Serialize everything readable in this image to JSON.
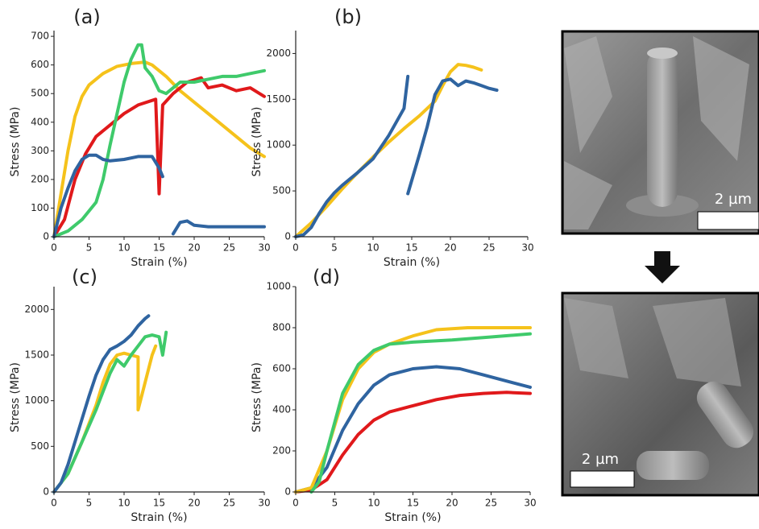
{
  "chart_data": [
    {
      "type": "line",
      "title": "(a)",
      "x_label": "Strain (%)",
      "y_label": "Stress (MPa)",
      "xlim": [
        0,
        30
      ],
      "ylim": [
        0,
        720
      ],
      "xticks": [
        0,
        5,
        10,
        15,
        20,
        25,
        30
      ],
      "yticks": [
        0,
        100,
        200,
        300,
        400,
        500,
        600,
        700
      ],
      "series": [
        {
          "color": "#f5c21b",
          "x": [
            0,
            1,
            2,
            3,
            4,
            5,
            7,
            9,
            11,
            13,
            14,
            16,
            18,
            20,
            22,
            24,
            26,
            28,
            30
          ],
          "values": [
            0,
            150,
            300,
            420,
            490,
            530,
            570,
            595,
            605,
            610,
            600,
            560,
            510,
            470,
            430,
            390,
            350,
            310,
            280
          ]
        },
        {
          "color": "#e0191b",
          "x": [
            0,
            1.5,
            3,
            4.5,
            6,
            8,
            10,
            12,
            14.5,
            15,
            15.5,
            17,
            19,
            21,
            22,
            24,
            26,
            28,
            30
          ],
          "values": [
            0,
            60,
            200,
            290,
            350,
            390,
            430,
            460,
            480,
            150,
            460,
            500,
            540,
            555,
            520,
            530,
            510,
            520,
            490
          ]
        },
        {
          "color": "#3fca6b",
          "x": [
            0,
            2,
            4,
            6,
            7,
            8,
            9,
            10,
            11,
            12,
            12.5,
            13,
            14,
            15,
            16,
            17,
            18,
            20,
            22,
            24,
            26,
            28,
            30
          ],
          "values": [
            0,
            20,
            60,
            120,
            200,
            320,
            430,
            540,
            620,
            670,
            670,
            590,
            560,
            510,
            500,
            520,
            540,
            540,
            550,
            560,
            560,
            570,
            580
          ]
        },
        {
          "color": "#2f64a0",
          "x": [
            0,
            1,
            2,
            3,
            4,
            5,
            6,
            7,
            8,
            10,
            12,
            14,
            15,
            15.5,
            16,
            17,
            18,
            19,
            20,
            22,
            25,
            30
          ],
          "values": [
            0,
            100,
            170,
            230,
            270,
            285,
            285,
            270,
            265,
            270,
            280,
            280,
            240,
            210,
            null,
            10,
            50,
            55,
            40,
            35,
            35,
            35
          ]
        }
      ]
    },
    {
      "type": "line",
      "title": "(b)",
      "x_label": "Strain (%)",
      "y_label": "Stress (MPa)",
      "xlim": [
        0,
        30
      ],
      "ylim": [
        0,
        2250
      ],
      "xticks": [
        0,
        5,
        10,
        15,
        20,
        25,
        30
      ],
      "yticks": [
        0,
        500,
        1000,
        1500,
        2000
      ],
      "series": [
        {
          "color": "#f5c21b",
          "x": [
            0,
            2,
            4,
            6,
            8,
            10,
            12,
            14,
            16,
            18,
            19,
            20,
            21,
            22,
            23,
            24
          ],
          "values": [
            0,
            150,
            330,
            520,
            700,
            870,
            1030,
            1180,
            1320,
            1480,
            1650,
            1800,
            1880,
            1870,
            1850,
            1820
          ]
        },
        {
          "color": "#2f64a0",
          "x": [
            0,
            1,
            2,
            3,
            4,
            5,
            6,
            8,
            10,
            12,
            14,
            14.5,
            14.5,
            14.5,
            16,
            17,
            18,
            19,
            20,
            21,
            22,
            23,
            24,
            25,
            26
          ],
          "values": [
            0,
            20,
            100,
            250,
            380,
            480,
            560,
            700,
            850,
            1100,
            1400,
            1750,
            null,
            470,
            900,
            1200,
            1550,
            1700,
            1720,
            1650,
            1700,
            1680,
            1650,
            1620,
            1600
          ]
        }
      ]
    },
    {
      "type": "line",
      "title": "(c)",
      "x_label": "Strain (%)",
      "y_label": "Stress (MPa)",
      "xlim": [
        0,
        30
      ],
      "ylim": [
        0,
        2250
      ],
      "xticks": [
        0,
        5,
        10,
        15,
        20,
        25,
        30
      ],
      "yticks": [
        0,
        500,
        1000,
        1500,
        2000
      ],
      "series": [
        {
          "color": "#f5c21b",
          "x": [
            0,
            2,
            4,
            6,
            7,
            8,
            9,
            10,
            11,
            12,
            12,
            13,
            14,
            14.5
          ],
          "values": [
            0,
            200,
            550,
            950,
            1200,
            1400,
            1500,
            1520,
            1500,
            1480,
            900,
            1200,
            1500,
            1600
          ]
        },
        {
          "color": "#3fca6b",
          "x": [
            0,
            2,
            4,
            6,
            8,
            9,
            10,
            11,
            12,
            13,
            14,
            15,
            15.5,
            16
          ],
          "values": [
            0,
            200,
            550,
            900,
            1300,
            1450,
            1380,
            1500,
            1600,
            1700,
            1720,
            1700,
            1500,
            1750
          ]
        },
        {
          "color": "#2f64a0",
          "x": [
            0,
            1,
            2,
            3,
            4,
            5,
            6,
            7,
            8,
            9,
            10,
            11,
            12,
            13,
            13.5
          ],
          "values": [
            0,
            100,
            300,
            550,
            800,
            1050,
            1280,
            1450,
            1560,
            1600,
            1650,
            1720,
            1820,
            1900,
            1930
          ]
        }
      ]
    },
    {
      "type": "line",
      "title": "(d)",
      "x_label": "Strain (%)",
      "y_label": "Stress (MPa)",
      "xlim": [
        0,
        30
      ],
      "ylim": [
        0,
        1000
      ],
      "xticks": [
        0,
        5,
        10,
        15,
        20,
        25,
        30
      ],
      "yticks": [
        0,
        200,
        400,
        600,
        800,
        1000
      ],
      "series": [
        {
          "color": "#e0191b",
          "x": [
            0,
            2,
            4,
            6,
            8,
            10,
            12,
            15,
            18,
            21,
            24,
            27,
            30
          ],
          "values": [
            0,
            10,
            60,
            180,
            280,
            350,
            390,
            420,
            450,
            470,
            480,
            485,
            480
          ]
        },
        {
          "color": "#2f64a0",
          "x": [
            0,
            2,
            4,
            6,
            8,
            10,
            12,
            15,
            18,
            21,
            24,
            27,
            30
          ],
          "values": [
            0,
            20,
            120,
            300,
            430,
            520,
            570,
            600,
            610,
            600,
            570,
            540,
            510
          ]
        },
        {
          "color": "#f5c21b",
          "x": [
            0,
            2,
            4,
            6,
            8,
            10,
            12,
            15,
            18,
            22,
            26,
            30
          ],
          "values": [
            0,
            20,
            200,
            450,
            600,
            680,
            720,
            760,
            790,
            800,
            800,
            800
          ]
        },
        {
          "color": "#3fca6b",
          "x": [
            2,
            3,
            4,
            6,
            8,
            10,
            12,
            15,
            20,
            25,
            30
          ],
          "values": [
            0,
            50,
            200,
            480,
            620,
            690,
            720,
            730,
            740,
            755,
            770
          ]
        }
      ]
    }
  ],
  "images": [
    {
      "scale_label": "2 µm"
    },
    {
      "scale_label": "2 µm"
    }
  ]
}
